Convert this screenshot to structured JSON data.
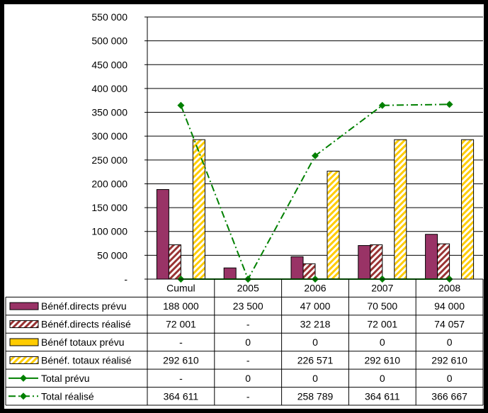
{
  "chart_data": {
    "type": "bar",
    "categories": [
      "Cumul",
      "2005",
      "2006",
      "2007",
      "2008"
    ],
    "ylim": [
      0,
      550000
    ],
    "ytick_values": [
      0,
      50000,
      100000,
      150000,
      200000,
      250000,
      300000,
      350000,
      400000,
      450000,
      500000,
      550000
    ],
    "ytick_labels": [
      "-",
      "50 000",
      "100 000",
      "150 000",
      "200 000",
      "250 000",
      "300 000",
      "350 000",
      "400 000",
      "450 000",
      "500 000",
      "550 000"
    ],
    "grid": true,
    "legend": "table-below",
    "series": [
      {
        "name": "Bénéf.directs prévu",
        "kind": "bar",
        "style": "solid",
        "color": "#993366",
        "values": [
          188000,
          23500,
          47000,
          70500,
          94000
        ],
        "labels": [
          "188 000",
          "23 500",
          "47 000",
          "70 500",
          "94 000"
        ]
      },
      {
        "name": "Bénéf.directs réalisé",
        "kind": "bar",
        "style": "hatch",
        "color": "#993333",
        "values": [
          72001,
          0,
          32218,
          72001,
          74057
        ],
        "labels": [
          "72 001",
          "-",
          "32 218",
          "72 001",
          "74 057"
        ]
      },
      {
        "name": "Bénéf totaux prévu",
        "kind": "bar",
        "style": "solid",
        "color": "#FFCC00",
        "values": [
          0,
          0,
          0,
          0,
          0
        ],
        "labels": [
          "-",
          "0",
          "0",
          "0",
          "0"
        ]
      },
      {
        "name": "Bénéf. totaux réalisé",
        "kind": "bar",
        "style": "hatch",
        "color": "#FFCC00",
        "values": [
          292610,
          0,
          226571,
          292610,
          292610
        ],
        "labels": [
          "292 610",
          "-",
          "226 571",
          "292 610",
          "292 610"
        ]
      },
      {
        "name": "Total prévu",
        "kind": "line",
        "style": "solid",
        "color": "#008000",
        "values": [
          0,
          0,
          0,
          0,
          0
        ],
        "labels": [
          "-",
          "0",
          "0",
          "0",
          "0"
        ]
      },
      {
        "name": "Total réalisé",
        "kind": "line",
        "style": "dashdot",
        "color": "#008000",
        "values": [
          364611,
          0,
          258789,
          364611,
          366667
        ],
        "labels": [
          "364 611",
          "-",
          "258 789",
          "364 611",
          "366 667"
        ]
      }
    ]
  }
}
